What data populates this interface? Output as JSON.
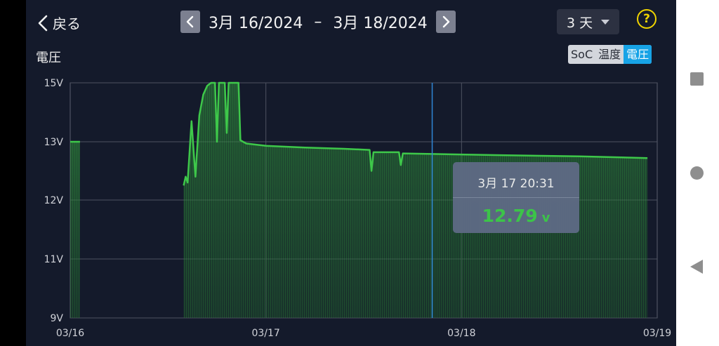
{
  "header": {
    "back_label": "戻る",
    "date_start": "3月 16/2024",
    "date_separator": "–",
    "date_end": "3月 18/2024",
    "range_value": "3 天",
    "help_symbol": "?"
  },
  "chart_title": "電圧",
  "metric_tabs": [
    {
      "label": "SoC",
      "active": false
    },
    {
      "label": "温度",
      "active": false
    },
    {
      "label": "電圧",
      "active": true
    }
  ],
  "tooltip": {
    "time": "3月 17 20:31",
    "value": "12.79",
    "unit": "v"
  },
  "colors": {
    "background": "#141a2b",
    "line": "#3ec84a",
    "cursor": "#2f86d6",
    "tab_active": "#17a3e6"
  },
  "chart_data": {
    "type": "area",
    "title": "",
    "xlabel": "",
    "ylabel": "",
    "y_ticks": [
      {
        "value": 9,
        "label": "9V"
      },
      {
        "value": 11,
        "label": "11V"
      },
      {
        "value": 12,
        "label": "12V"
      },
      {
        "value": 13,
        "label": "13V"
      },
      {
        "value": 15,
        "label": "15V"
      }
    ],
    "x_ticks": [
      {
        "value": 0,
        "label": "03/16"
      },
      {
        "value": 1,
        "label": "03/17"
      },
      {
        "value": 2,
        "label": "03/18"
      },
      {
        "value": 3,
        "label": "03/19"
      }
    ],
    "grid": true,
    "cursor_x": 1.85,
    "series": [
      {
        "segments": [
          [
            [
              0.0,
              13.0
            ],
            [
              0.05,
              13.0
            ]
          ],
          [
            [
              0.58,
              12.25
            ],
            [
              0.59,
              12.4
            ],
            [
              0.6,
              12.3
            ],
            [
              0.62,
              13.7
            ],
            [
              0.64,
              12.4
            ],
            [
              0.66,
              13.9
            ],
            [
              0.68,
              14.6
            ],
            [
              0.7,
              14.9
            ],
            [
              0.72,
              15.0
            ],
            [
              0.74,
              15.0
            ],
            [
              0.75,
              13.0
            ],
            [
              0.76,
              15.0
            ],
            [
              0.79,
              15.0
            ],
            [
              0.8,
              13.3
            ],
            [
              0.81,
              15.0
            ],
            [
              0.86,
              15.0
            ],
            [
              0.87,
              13.05
            ],
            [
              0.9,
              12.97
            ],
            [
              1.0,
              12.93
            ],
            [
              1.2,
              12.9
            ],
            [
              1.4,
              12.88
            ],
            [
              1.53,
              12.86
            ],
            [
              1.54,
              12.5
            ],
            [
              1.55,
              12.82
            ],
            [
              1.68,
              12.82
            ],
            [
              1.69,
              12.6
            ],
            [
              1.7,
              12.8
            ],
            [
              1.85,
              12.79
            ],
            [
              2.2,
              12.77
            ],
            [
              2.6,
              12.75
            ],
            [
              2.95,
              12.72
            ]
          ]
        ]
      }
    ]
  }
}
